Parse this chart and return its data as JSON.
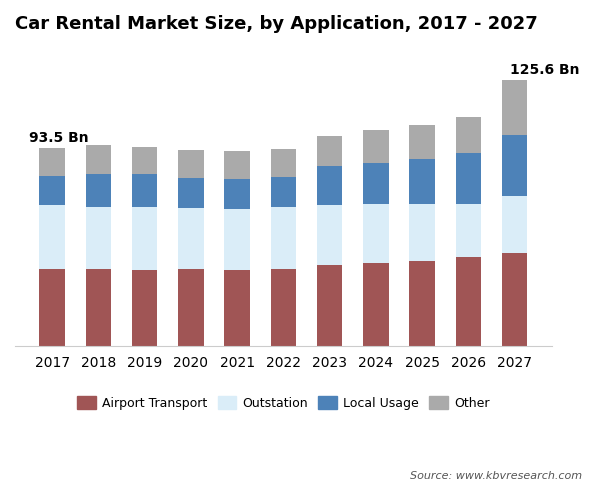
{
  "title": "Car Rental Market Size, by Application, 2017 - 2027",
  "years": [
    2017,
    2018,
    2019,
    2020,
    2021,
    2022,
    2023,
    2024,
    2025,
    2026,
    2027
  ],
  "airport_transport": [
    36.5,
    36.5,
    36.2,
    36.5,
    36.0,
    36.5,
    38.5,
    39.5,
    40.5,
    42.0,
    44.0
  ],
  "outstation": [
    30.0,
    29.5,
    29.5,
    29.0,
    29.0,
    29.5,
    28.0,
    27.5,
    26.5,
    25.0,
    27.0
  ],
  "local_usage": [
    14.0,
    15.5,
    15.5,
    14.0,
    14.0,
    14.0,
    18.5,
    19.5,
    21.5,
    24.5,
    29.0
  ],
  "other": [
    13.0,
    13.5,
    13.0,
    13.0,
    13.0,
    13.0,
    14.5,
    15.5,
    16.0,
    17.0,
    25.6
  ],
  "annotation_2017": "93.5 Bn",
  "annotation_2027": "125.6 Bn",
  "colors": {
    "airport_transport": "#a05555",
    "outstation": "#daedf8",
    "local_usage": "#4d82b8",
    "other": "#aaaaaa"
  },
  "legend_labels": [
    "Airport Transport",
    "Outstation",
    "Local Usage",
    "Other"
  ],
  "source_text": "Source: www.kbvresearch.com",
  "ylim": [
    0,
    140
  ],
  "bar_width": 0.55,
  "figsize": [
    6.0,
    4.83
  ],
  "dpi": 100
}
